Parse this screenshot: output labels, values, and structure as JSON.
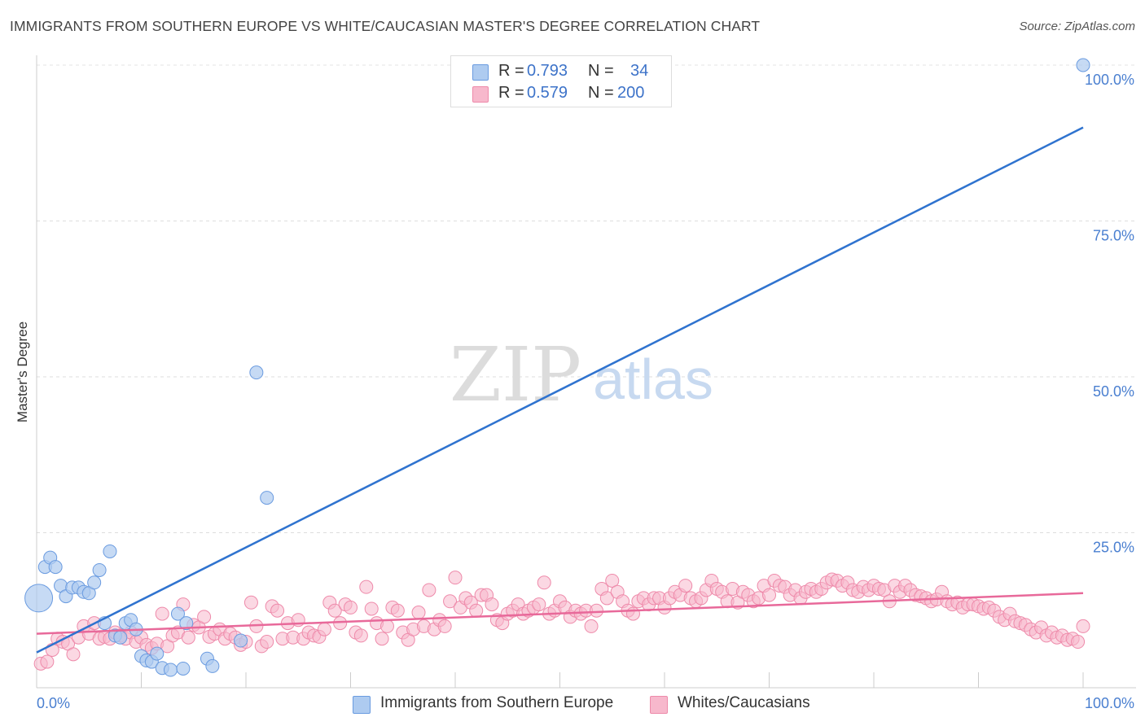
{
  "title": "IMMIGRANTS FROM SOUTHERN EUROPE VS WHITE/CAUCASIAN MASTER'S DEGREE CORRELATION CHART",
  "source": "Source: ZipAtlas.com",
  "watermark": {
    "zip": "ZIP",
    "atlas": "atlas"
  },
  "legend": {
    "rows": [
      {
        "r_label": "R =",
        "r_value": "0.793",
        "n_label": "N =",
        "n_value": "34",
        "color": "#aecbf0"
      },
      {
        "r_label": "R =",
        "r_value": "0.579",
        "n_label": "N =",
        "n_value": "200",
        "color": "#f7b8cc"
      }
    ]
  },
  "bottom_legend": [
    {
      "label": "Immigrants from Southern Europe",
      "color": "#aecbf0"
    },
    {
      "label": "Whites/Caucasians",
      "color": "#f7b8cc"
    }
  ],
  "chart_data": {
    "type": "scatter",
    "title": "IMMIGRANTS FROM SOUTHERN EUROPE VS WHITE/CAUCASIAN MASTER'S DEGREE CORRELATION CHART",
    "xlabel": "",
    "ylabel": "Master's Degree",
    "xlim": [
      0,
      100
    ],
    "ylim": [
      0,
      102
    ],
    "x_tick_labels": [
      "0.0%",
      "100.0%"
    ],
    "y_ticks": [
      25,
      50,
      75,
      100
    ],
    "y_tick_labels": [
      "25.0%",
      "50.0%",
      "75.0%",
      "100.0%"
    ],
    "grid": true,
    "legend_position": "top-center",
    "colors": {
      "blue_fill": "#aecbf0",
      "blue_stroke": "#6a9be0",
      "blue_line": "#2f73cf",
      "pink_fill": "#f7b8cc",
      "pink_stroke": "#ee8aaa",
      "pink_line": "#e8699a",
      "axis_text": "#4a7fd0"
    },
    "series": [
      {
        "name": "Immigrants from Southern Europe",
        "color": "#aecbf0",
        "points": [
          [
            0.2,
            14.5
          ],
          [
            0.8,
            19.5
          ],
          [
            1.3,
            21.0
          ],
          [
            1.8,
            19.5
          ],
          [
            2.3,
            16.5
          ],
          [
            2.8,
            14.8
          ],
          [
            3.4,
            16.2
          ],
          [
            4.0,
            16.2
          ],
          [
            4.5,
            15.5
          ],
          [
            5.0,
            15.3
          ],
          [
            5.5,
            17.0
          ],
          [
            6.0,
            19.0
          ],
          [
            6.5,
            10.5
          ],
          [
            7.0,
            22.0
          ],
          [
            7.5,
            8.5
          ],
          [
            8.0,
            8.2
          ],
          [
            8.5,
            10.5
          ],
          [
            9.0,
            11.0
          ],
          [
            9.5,
            9.5
          ],
          [
            10.0,
            5.2
          ],
          [
            10.5,
            4.5
          ],
          [
            11.0,
            4.3
          ],
          [
            11.5,
            5.6
          ],
          [
            12.0,
            3.3
          ],
          [
            12.8,
            3.0
          ],
          [
            13.5,
            12.0
          ],
          [
            14.0,
            3.2
          ],
          [
            14.3,
            10.5
          ],
          [
            16.3,
            4.8
          ],
          [
            16.8,
            3.6
          ],
          [
            19.5,
            7.7
          ],
          [
            21.0,
            50.7
          ],
          [
            22.0,
            30.6
          ],
          [
            100.0,
            100.0
          ]
        ]
      },
      {
        "name": "Whites/Caucasians",
        "color": "#f7b8cc",
        "points": [
          [
            0.4,
            4.0
          ],
          [
            1.0,
            4.3
          ],
          [
            1.5,
            6.2
          ],
          [
            2.0,
            8.0
          ],
          [
            2.5,
            7.5
          ],
          [
            3.0,
            7.2
          ],
          [
            3.5,
            5.5
          ],
          [
            4.0,
            8.2
          ],
          [
            4.5,
            10.0
          ],
          [
            5.0,
            8.8
          ],
          [
            5.5,
            10.5
          ],
          [
            6.0,
            8.0
          ],
          [
            6.5,
            8.3
          ],
          [
            7.0,
            8.0
          ],
          [
            7.5,
            9.0
          ],
          [
            8.0,
            8.5
          ],
          [
            8.5,
            8.0
          ],
          [
            9.0,
            9.0
          ],
          [
            9.5,
            7.5
          ],
          [
            10.0,
            8.2
          ],
          [
            10.5,
            7.0
          ],
          [
            11.0,
            6.5
          ],
          [
            11.5,
            7.2
          ],
          [
            12.0,
            12.0
          ],
          [
            12.5,
            6.8
          ],
          [
            13.0,
            8.5
          ],
          [
            13.5,
            9.0
          ],
          [
            14.0,
            13.5
          ],
          [
            14.5,
            8.2
          ],
          [
            15.0,
            10.2
          ],
          [
            15.5,
            9.8
          ],
          [
            16.0,
            11.5
          ],
          [
            16.5,
            8.3
          ],
          [
            17.0,
            8.8
          ],
          [
            17.5,
            9.5
          ],
          [
            18.0,
            8.0
          ],
          [
            18.5,
            8.8
          ],
          [
            19.0,
            8.2
          ],
          [
            19.5,
            7.0
          ],
          [
            20.0,
            7.5
          ],
          [
            20.5,
            13.8
          ],
          [
            21.0,
            10.0
          ],
          [
            21.5,
            6.8
          ],
          [
            22.0,
            7.5
          ],
          [
            22.5,
            13.2
          ],
          [
            23.0,
            12.5
          ],
          [
            23.5,
            8.0
          ],
          [
            24.0,
            10.5
          ],
          [
            24.5,
            8.2
          ],
          [
            25.0,
            11.0
          ],
          [
            25.5,
            8.0
          ],
          [
            26.0,
            9.0
          ],
          [
            26.5,
            8.5
          ],
          [
            27.0,
            8.3
          ],
          [
            27.5,
            9.5
          ],
          [
            28.0,
            13.8
          ],
          [
            28.5,
            12.5
          ],
          [
            29.0,
            10.5
          ],
          [
            29.5,
            13.5
          ],
          [
            30.0,
            13.0
          ],
          [
            30.5,
            9.0
          ],
          [
            31.0,
            8.5
          ],
          [
            31.5,
            16.3
          ],
          [
            32.0,
            12.8
          ],
          [
            32.5,
            10.5
          ],
          [
            33.0,
            8.0
          ],
          [
            33.5,
            10.0
          ],
          [
            34.0,
            13.0
          ],
          [
            34.5,
            12.5
          ],
          [
            35.0,
            9.0
          ],
          [
            35.5,
            7.8
          ],
          [
            36.0,
            9.5
          ],
          [
            36.5,
            12.2
          ],
          [
            37.0,
            10.0
          ],
          [
            37.5,
            15.8
          ],
          [
            38.0,
            9.5
          ],
          [
            38.5,
            11.0
          ],
          [
            39.0,
            10.0
          ],
          [
            39.5,
            14.0
          ],
          [
            40.0,
            17.8
          ],
          [
            40.5,
            13.0
          ],
          [
            41.0,
            14.5
          ],
          [
            41.5,
            13.8
          ],
          [
            42.0,
            12.5
          ],
          [
            42.5,
            15.0
          ],
          [
            43.0,
            15.0
          ],
          [
            43.5,
            13.5
          ],
          [
            44.0,
            11.0
          ],
          [
            44.5,
            10.5
          ],
          [
            45.0,
            12.0
          ],
          [
            45.5,
            12.5
          ],
          [
            46.0,
            13.5
          ],
          [
            46.5,
            12.0
          ],
          [
            47.0,
            12.5
          ],
          [
            47.5,
            13.0
          ],
          [
            48.0,
            13.5
          ],
          [
            48.5,
            17.0
          ],
          [
            49.0,
            12.0
          ],
          [
            49.5,
            12.5
          ],
          [
            50.0,
            14.0
          ],
          [
            50.5,
            13.0
          ],
          [
            51.0,
            11.5
          ],
          [
            51.5,
            12.5
          ],
          [
            52.0,
            12.0
          ],
          [
            52.5,
            12.5
          ],
          [
            53.0,
            10.0
          ],
          [
            53.5,
            12.5
          ],
          [
            54.0,
            16.0
          ],
          [
            54.5,
            14.5
          ],
          [
            55.0,
            17.3
          ],
          [
            55.5,
            15.5
          ],
          [
            56.0,
            14.0
          ],
          [
            56.5,
            12.5
          ],
          [
            57.0,
            12.0
          ],
          [
            57.5,
            14.0
          ],
          [
            58.0,
            14.5
          ],
          [
            58.5,
            13.5
          ],
          [
            59.0,
            14.5
          ],
          [
            59.5,
            14.5
          ],
          [
            60.0,
            13.0
          ],
          [
            60.5,
            14.5
          ],
          [
            61.0,
            15.5
          ],
          [
            61.5,
            15.0
          ],
          [
            62.0,
            16.5
          ],
          [
            62.5,
            14.5
          ],
          [
            63.0,
            14.0
          ],
          [
            63.5,
            14.5
          ],
          [
            64.0,
            15.8
          ],
          [
            64.5,
            17.3
          ],
          [
            65.0,
            16.0
          ],
          [
            65.5,
            15.5
          ],
          [
            66.0,
            14.0
          ],
          [
            66.5,
            16.0
          ],
          [
            67.0,
            13.8
          ],
          [
            67.5,
            15.5
          ],
          [
            68.0,
            15.0
          ],
          [
            68.5,
            14.0
          ],
          [
            69.0,
            14.5
          ],
          [
            69.5,
            16.5
          ],
          [
            70.0,
            15.0
          ],
          [
            70.5,
            17.3
          ],
          [
            71.0,
            16.5
          ],
          [
            71.5,
            16.3
          ],
          [
            72.0,
            15.0
          ],
          [
            72.5,
            15.8
          ],
          [
            73.0,
            14.5
          ],
          [
            73.5,
            15.5
          ],
          [
            74.0,
            16.0
          ],
          [
            74.5,
            15.5
          ],
          [
            75.0,
            16.0
          ],
          [
            75.5,
            17.0
          ],
          [
            76.0,
            17.5
          ],
          [
            76.5,
            17.3
          ],
          [
            77.0,
            16.5
          ],
          [
            77.5,
            17.0
          ],
          [
            78.0,
            15.8
          ],
          [
            78.5,
            15.5
          ],
          [
            79.0,
            16.3
          ],
          [
            79.5,
            15.8
          ],
          [
            80.0,
            16.5
          ],
          [
            80.5,
            16.0
          ],
          [
            81.0,
            15.8
          ],
          [
            81.5,
            14.0
          ],
          [
            82.0,
            16.5
          ],
          [
            82.5,
            15.5
          ],
          [
            83.0,
            16.5
          ],
          [
            83.5,
            15.8
          ],
          [
            84.0,
            15.0
          ],
          [
            84.5,
            14.8
          ],
          [
            85.0,
            14.5
          ],
          [
            85.5,
            14.0
          ],
          [
            86.0,
            14.3
          ],
          [
            86.5,
            15.5
          ],
          [
            87.0,
            14.0
          ],
          [
            87.5,
            13.5
          ],
          [
            88.0,
            13.8
          ],
          [
            88.5,
            13.0
          ],
          [
            89.0,
            13.5
          ],
          [
            89.5,
            13.5
          ],
          [
            90.0,
            13.2
          ],
          [
            90.5,
            12.8
          ],
          [
            91.0,
            13.0
          ],
          [
            91.5,
            12.5
          ],
          [
            92.0,
            11.5
          ],
          [
            92.5,
            11.0
          ],
          [
            93.0,
            12.0
          ],
          [
            93.5,
            10.8
          ],
          [
            94.0,
            10.5
          ],
          [
            94.5,
            10.2
          ],
          [
            95.0,
            9.5
          ],
          [
            95.5,
            9.0
          ],
          [
            96.0,
            9.8
          ],
          [
            96.5,
            8.5
          ],
          [
            97.0,
            9.0
          ],
          [
            97.5,
            8.2
          ],
          [
            98.0,
            8.5
          ],
          [
            98.5,
            7.8
          ],
          [
            99.0,
            8.0
          ],
          [
            99.5,
            7.5
          ],
          [
            100.0,
            10.0
          ]
        ]
      }
    ],
    "trend_lines": [
      {
        "series": "Immigrants from Southern Europe",
        "from": [
          0,
          5.8
        ],
        "to": [
          100,
          90.0
        ]
      },
      {
        "series": "Whites/Caucasians",
        "from": [
          0,
          8.8
        ],
        "to": [
          100,
          15.3
        ]
      }
    ],
    "highlighted_point": {
      "series": "Immigrants from Southern Europe",
      "x": 0.2,
      "y": 14.5
    }
  }
}
